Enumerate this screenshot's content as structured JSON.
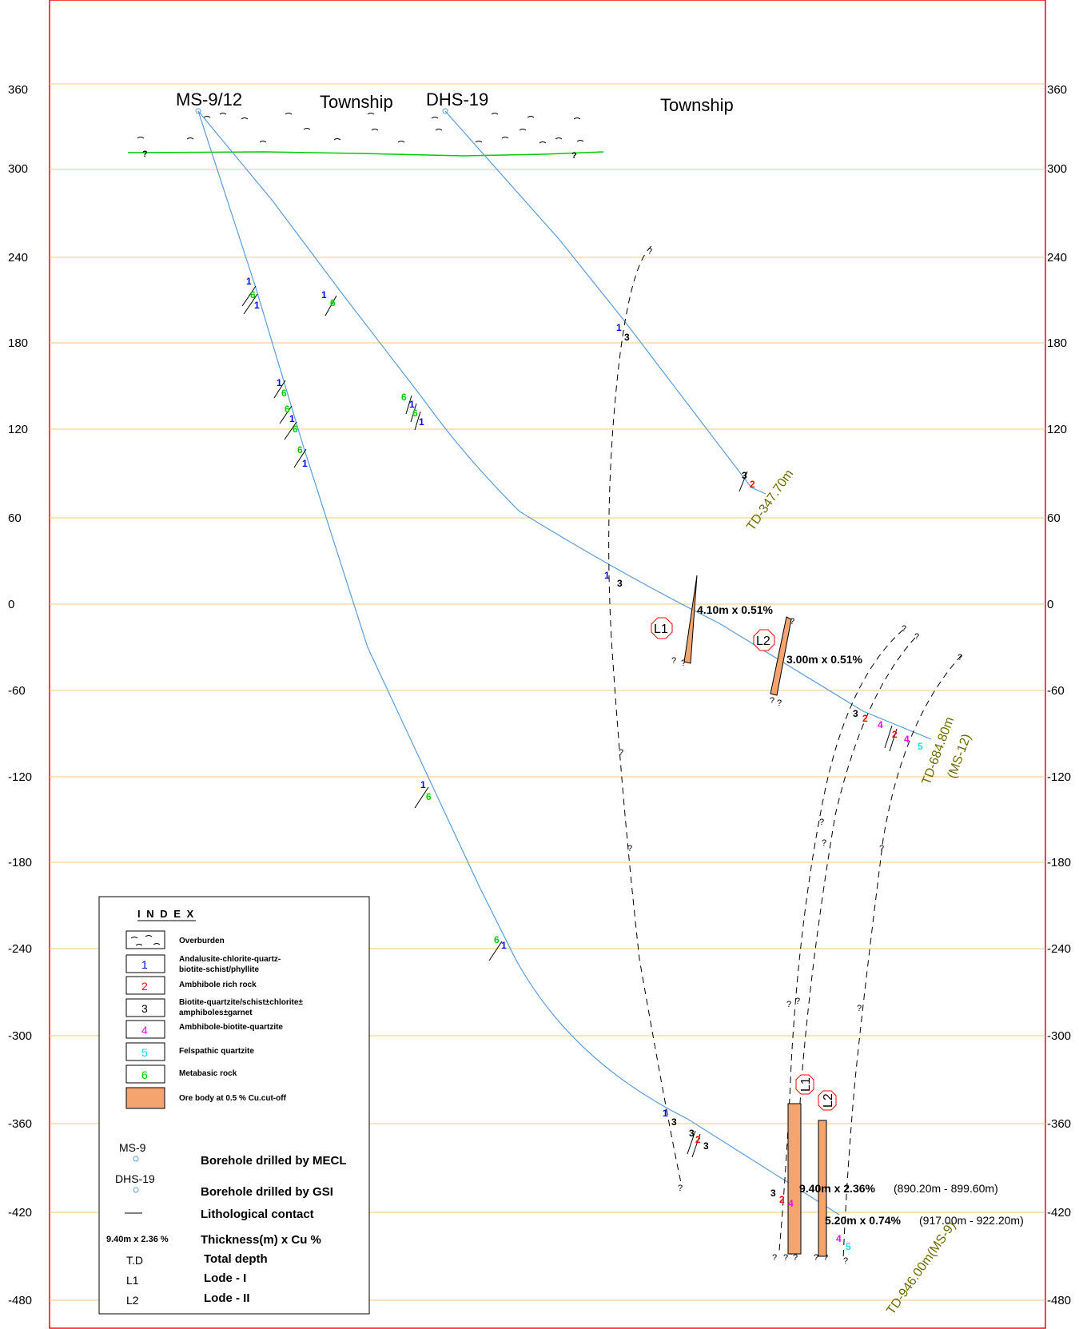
{
  "elevation_labels": [
    "360",
    "300",
    "240",
    "180",
    "120",
    "60",
    "0",
    "-60",
    "-120",
    "-180",
    "-240",
    "-300",
    "-360",
    "-420",
    "-480"
  ],
  "boreholes": {
    "ms": {
      "name": "MS-9/12",
      "area": "Township"
    },
    "dhs": {
      "name": "DHS-19",
      "area": "Township"
    }
  },
  "contact_codes": [
    "1",
    "2",
    "3",
    "4",
    "5",
    "6"
  ],
  "unknown_mark": "?",
  "lodes": {
    "l1": "L1",
    "l2": "L2"
  },
  "ore_intersections": {
    "upper_l1": "4.10m x 0.51%",
    "upper_l2": "3.00m x 0.51%",
    "lower_l1": "9.40m x 2.36%",
    "lower_l1_range": "(890.20m - 899.60m)",
    "lower_l2": "5.20m x 0.74%",
    "lower_l2_range": "(917.00m - 922.20m)"
  },
  "total_depths": {
    "dhs19": "TD-347.70m",
    "ms12_line1": "TD-684.80m",
    "ms12_line2": "(MS-12)",
    "ms9": "TD-946.00m(MS-9)"
  },
  "legend": {
    "title": "I N D E X",
    "rock_units": [
      {
        "code": "",
        "label_lines": [
          "Overburden"
        ],
        "color": "#000000"
      },
      {
        "code": "1",
        "label_lines": [
          "Andalusite-chlorite-quartz-",
          "biotite-schist/phyllite"
        ],
        "color": "#0000ff"
      },
      {
        "code": "2",
        "label_lines": [
          "Ambhibole rich rock"
        ],
        "color": "#ff0000"
      },
      {
        "code": "3",
        "label_lines": [
          "Biotite-quartzite/schist±chlorite±",
          "amphiboles±garnet"
        ],
        "color": "#000000"
      },
      {
        "code": "4",
        "label_lines": [
          "Ambhibole-biotite-quartzite"
        ],
        "color": "#ff00ff"
      },
      {
        "code": "5",
        "label_lines": [
          "Felspathic quartzite"
        ],
        "color": "#00e5ff"
      },
      {
        "code": "6",
        "label_lines": [
          "Metabasic rock"
        ],
        "color": "#00cc00"
      },
      {
        "code": "",
        "label_lines": [
          "Ore body at 0.5 % Cu.cut-off"
        ],
        "color": "#f4a46e"
      }
    ],
    "symbols": [
      {
        "key": "MS-9",
        "description": "Borehole drilled by MECL"
      },
      {
        "key": "DHS-19",
        "description": "Borehole drilled by GSI"
      },
      {
        "key": "",
        "description": "Lithological contact"
      },
      {
        "key": "9.40m x 2.36 %",
        "description": "Thickness(m) x Cu %"
      },
      {
        "key": "T.D",
        "description": "Total depth"
      },
      {
        "key": "L1",
        "description": "Lode - I"
      },
      {
        "key": "L2",
        "description": "Lode - II"
      }
    ]
  },
  "colors": {
    "frame": "#ff0000",
    "elevation_grid": "#f5c87a",
    "borehole_trace": "#5b9bd5",
    "ground_line": "#00cc00",
    "ore_body": "#f4a46e",
    "td_text": "#6b6b00"
  }
}
